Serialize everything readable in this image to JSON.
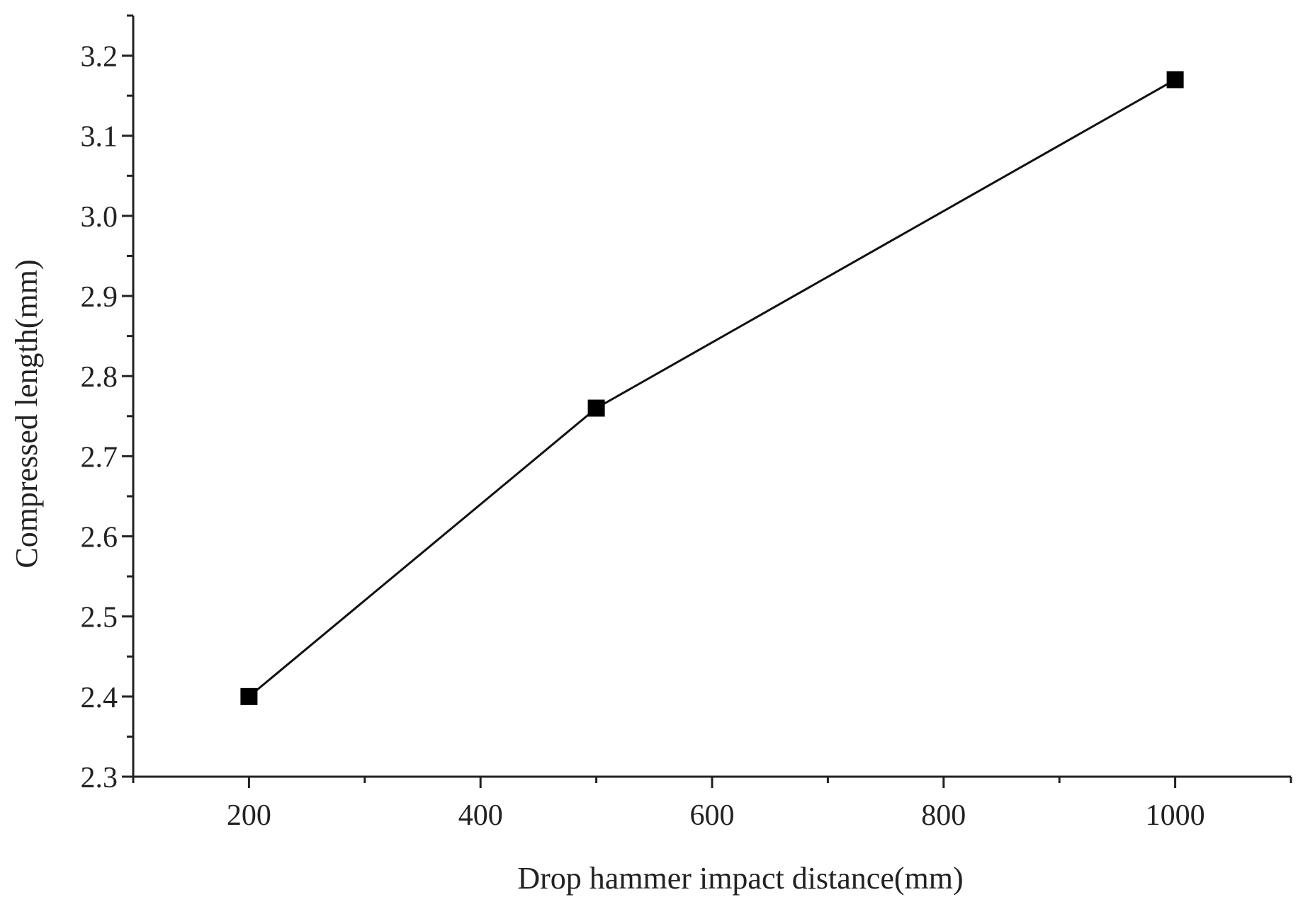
{
  "chart_data": {
    "type": "line",
    "title": "",
    "xlabel": "Drop hammer impact distance(mm)",
    "ylabel": "Compressed length(mm)",
    "xlim": [
      100,
      1100
    ],
    "ylim": [
      2.3,
      3.25
    ],
    "x_ticks": [
      200,
      400,
      600,
      800,
      1000
    ],
    "x_tick_labels": [
      "200",
      "400",
      "600",
      "800",
      "1000"
    ],
    "x_minor_ticks": [
      100,
      300,
      500,
      700,
      900,
      1100
    ],
    "y_ticks": [
      2.3,
      2.4,
      2.5,
      2.6,
      2.7,
      2.8,
      2.9,
      3.0,
      3.1,
      3.2
    ],
    "y_tick_labels": [
      "2.3",
      "2.4",
      "2.5",
      "2.6",
      "2.7",
      "2.8",
      "2.9",
      "3.0",
      "3.1",
      "3.2"
    ],
    "y_minor_ticks": [
      2.35,
      2.45,
      2.55,
      2.65,
      2.75,
      2.85,
      2.95,
      3.05,
      3.15,
      3.25
    ],
    "grid": false,
    "legend": "none",
    "series": [
      {
        "x": [
          200,
          500,
          1000
        ],
        "y": [
          2.4,
          2.76,
          3.17
        ],
        "marker": "square",
        "color": "#000000"
      }
    ]
  }
}
